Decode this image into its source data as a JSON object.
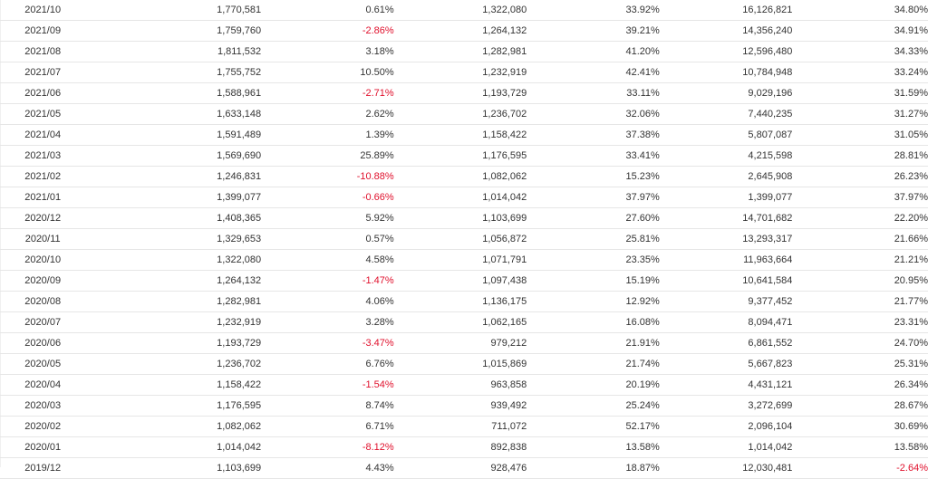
{
  "colors": {
    "text": "#333333",
    "negative": "#e0102c",
    "row_divider": "#e6e6e6"
  },
  "rows": [
    {
      "month": "2021/10",
      "revenue": "1,770,581",
      "mom": "0.61%",
      "prev_year": "1,322,080",
      "yoy": "33.92%",
      "cumulative": "16,126,821",
      "cum_yoy": "34.80%"
    },
    {
      "month": "2021/09",
      "revenue": "1,759,760",
      "mom": "-2.86%",
      "prev_year": "1,264,132",
      "yoy": "39.21%",
      "cumulative": "14,356,240",
      "cum_yoy": "34.91%"
    },
    {
      "month": "2021/08",
      "revenue": "1,811,532",
      "mom": "3.18%",
      "prev_year": "1,282,981",
      "yoy": "41.20%",
      "cumulative": "12,596,480",
      "cum_yoy": "34.33%"
    },
    {
      "month": "2021/07",
      "revenue": "1,755,752",
      "mom": "10.50%",
      "prev_year": "1,232,919",
      "yoy": "42.41%",
      "cumulative": "10,784,948",
      "cum_yoy": "33.24%"
    },
    {
      "month": "2021/06",
      "revenue": "1,588,961",
      "mom": "-2.71%",
      "prev_year": "1,193,729",
      "yoy": "33.11%",
      "cumulative": "9,029,196",
      "cum_yoy": "31.59%"
    },
    {
      "month": "2021/05",
      "revenue": "1,633,148",
      "mom": "2.62%",
      "prev_year": "1,236,702",
      "yoy": "32.06%",
      "cumulative": "7,440,235",
      "cum_yoy": "31.27%"
    },
    {
      "month": "2021/04",
      "revenue": "1,591,489",
      "mom": "1.39%",
      "prev_year": "1,158,422",
      "yoy": "37.38%",
      "cumulative": "5,807,087",
      "cum_yoy": "31.05%"
    },
    {
      "month": "2021/03",
      "revenue": "1,569,690",
      "mom": "25.89%",
      "prev_year": "1,176,595",
      "yoy": "33.41%",
      "cumulative": "4,215,598",
      "cum_yoy": "28.81%"
    },
    {
      "month": "2021/02",
      "revenue": "1,246,831",
      "mom": "-10.88%",
      "prev_year": "1,082,062",
      "yoy": "15.23%",
      "cumulative": "2,645,908",
      "cum_yoy": "26.23%"
    },
    {
      "month": "2021/01",
      "revenue": "1,399,077",
      "mom": "-0.66%",
      "prev_year": "1,014,042",
      "yoy": "37.97%",
      "cumulative": "1,399,077",
      "cum_yoy": "37.97%"
    },
    {
      "month": "2020/12",
      "revenue": "1,408,365",
      "mom": "5.92%",
      "prev_year": "1,103,699",
      "yoy": "27.60%",
      "cumulative": "14,701,682",
      "cum_yoy": "22.20%"
    },
    {
      "month": "2020/11",
      "revenue": "1,329,653",
      "mom": "0.57%",
      "prev_year": "1,056,872",
      "yoy": "25.81%",
      "cumulative": "13,293,317",
      "cum_yoy": "21.66%"
    },
    {
      "month": "2020/10",
      "revenue": "1,322,080",
      "mom": "4.58%",
      "prev_year": "1,071,791",
      "yoy": "23.35%",
      "cumulative": "11,963,664",
      "cum_yoy": "21.21%"
    },
    {
      "month": "2020/09",
      "revenue": "1,264,132",
      "mom": "-1.47%",
      "prev_year": "1,097,438",
      "yoy": "15.19%",
      "cumulative": "10,641,584",
      "cum_yoy": "20.95%"
    },
    {
      "month": "2020/08",
      "revenue": "1,282,981",
      "mom": "4.06%",
      "prev_year": "1,136,175",
      "yoy": "12.92%",
      "cumulative": "9,377,452",
      "cum_yoy": "21.77%"
    },
    {
      "month": "2020/07",
      "revenue": "1,232,919",
      "mom": "3.28%",
      "prev_year": "1,062,165",
      "yoy": "16.08%",
      "cumulative": "8,094,471",
      "cum_yoy": "23.31%"
    },
    {
      "month": "2020/06",
      "revenue": "1,193,729",
      "mom": "-3.47%",
      "prev_year": "979,212",
      "yoy": "21.91%",
      "cumulative": "6,861,552",
      "cum_yoy": "24.70%"
    },
    {
      "month": "2020/05",
      "revenue": "1,236,702",
      "mom": "6.76%",
      "prev_year": "1,015,869",
      "yoy": "21.74%",
      "cumulative": "5,667,823",
      "cum_yoy": "25.31%"
    },
    {
      "month": "2020/04",
      "revenue": "1,158,422",
      "mom": "-1.54%",
      "prev_year": "963,858",
      "yoy": "20.19%",
      "cumulative": "4,431,121",
      "cum_yoy": "26.34%"
    },
    {
      "month": "2020/03",
      "revenue": "1,176,595",
      "mom": "8.74%",
      "prev_year": "939,492",
      "yoy": "25.24%",
      "cumulative": "3,272,699",
      "cum_yoy": "28.67%"
    },
    {
      "month": "2020/02",
      "revenue": "1,082,062",
      "mom": "6.71%",
      "prev_year": "711,072",
      "yoy": "52.17%",
      "cumulative": "2,096,104",
      "cum_yoy": "30.69%"
    },
    {
      "month": "2020/01",
      "revenue": "1,014,042",
      "mom": "-8.12%",
      "prev_year": "892,838",
      "yoy": "13.58%",
      "cumulative": "1,014,042",
      "cum_yoy": "13.58%"
    },
    {
      "month": "2019/12",
      "revenue": "1,103,699",
      "mom": "4.43%",
      "prev_year": "928,476",
      "yoy": "18.87%",
      "cumulative": "12,030,481",
      "cum_yoy": "-2.64%"
    }
  ]
}
